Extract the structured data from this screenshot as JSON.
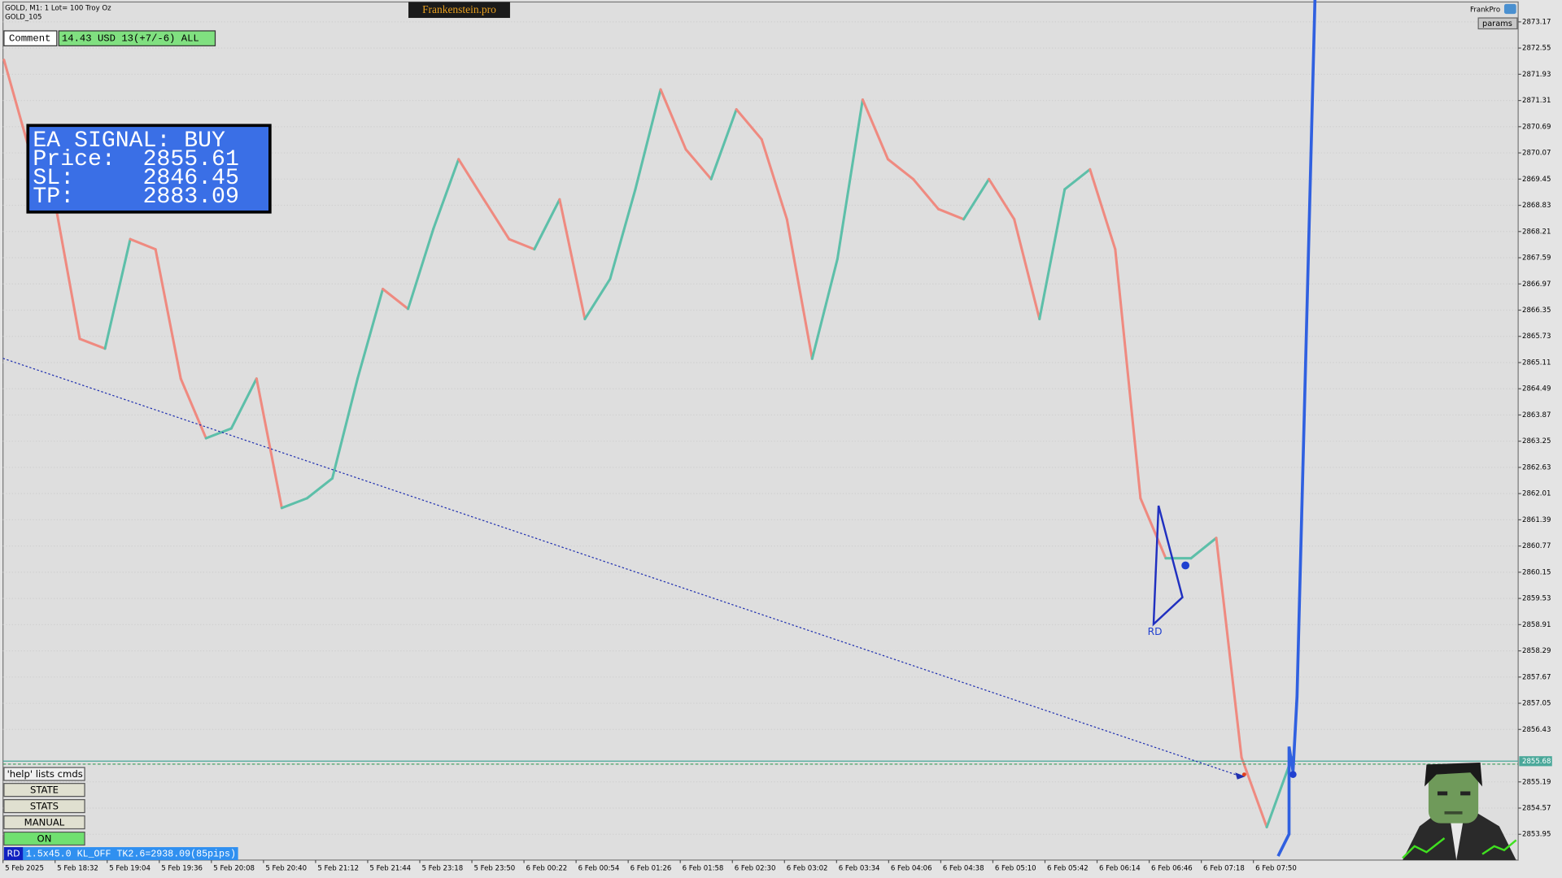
{
  "header": {
    "symbol": "GOLD, M1:  1 Lot= 100 Troy Oz",
    "account": "GOLD_105",
    "brand": "Frankenstein.pro",
    "user": "FrankPro",
    "params": "params"
  },
  "panel": {
    "comment_button": "Comment",
    "summary": "14.43 USD 13(+7/-6) ALL"
  },
  "signal": {
    "lines": [
      "EA SIGNAL: BUY",
      "Price:  2855.61",
      "SL:     2846.45",
      "TP:     2883.09"
    ]
  },
  "buttons": [
    "'help' lists cmds",
    "STATE",
    "STATS",
    "MANUAL",
    "ON"
  ],
  "status": {
    "tag": "RD",
    "text": "1.5x45.0 KL_OFF TK2.6=2938.09(85pips)"
  },
  "chart_data": {
    "type": "line",
    "time_labels": [
      "5 Feb 2025",
      "5 Feb 18:32",
      "5 Feb 19:04",
      "5 Feb 19:36",
      "5 Feb 20:08",
      "5 Feb 20:40",
      "5 Feb 21:12",
      "5 Feb 21:44",
      "5 Feb 23:18",
      "5 Feb 23:50",
      "6 Feb 00:22",
      "6 Feb 00:54",
      "6 Feb 01:26",
      "6 Feb 01:58",
      "6 Feb 02:30",
      "6 Feb 03:02",
      "6 Feb 03:34",
      "6 Feb 04:06",
      "6 Feb 04:38",
      "6 Feb 05:10",
      "6 Feb 05:42",
      "6 Feb 06:14",
      "6 Feb 06:46",
      "6 Feb 07:18",
      "6 Feb 07:50"
    ],
    "values": [
      2872.27,
      2870.15,
      2868.97,
      2865.67,
      2865.44,
      2868.03,
      2867.79,
      2864.73,
      2863.32,
      2863.55,
      2864.73,
      2861.67,
      2861.9,
      2862.37,
      2864.73,
      2866.85,
      2866.38,
      2868.27,
      2869.92,
      2868.97,
      2868.03,
      2867.79,
      2868.97,
      2866.14,
      2867.09,
      2869.21,
      2871.57,
      2870.15,
      2869.45,
      2871.1,
      2870.39,
      2868.5,
      2865.2,
      2867.56,
      2871.33,
      2869.92,
      2869.45,
      2868.74,
      2868.5,
      2869.45,
      2868.5,
      2866.14,
      2869.21,
      2869.68,
      2867.79,
      2861.9,
      2860.48,
      2860.48,
      2860.96,
      2855.77,
      2854.12,
      2855.77
    ],
    "colors": {
      "up": "#5dbfa9",
      "down": "#ef8a80"
    },
    "ylim": [
      2853.34,
      2873.64
    ],
    "yticks": [
      2873.17,
      2872.55,
      2871.93,
      2871.31,
      2870.69,
      2870.07,
      2869.45,
      2868.83,
      2868.21,
      2867.59,
      2866.97,
      2866.35,
      2865.73,
      2865.11,
      2864.49,
      2863.87,
      2863.25,
      2862.63,
      2862.01,
      2861.39,
      2860.77,
      2860.15,
      2859.53,
      2858.91,
      2858.29,
      2857.67,
      2857.05,
      2856.43,
      2855.19,
      2854.57,
      2853.95
    ],
    "grid": true,
    "bid": 2855.68,
    "entry": 2855.61,
    "annotation": "RD"
  }
}
